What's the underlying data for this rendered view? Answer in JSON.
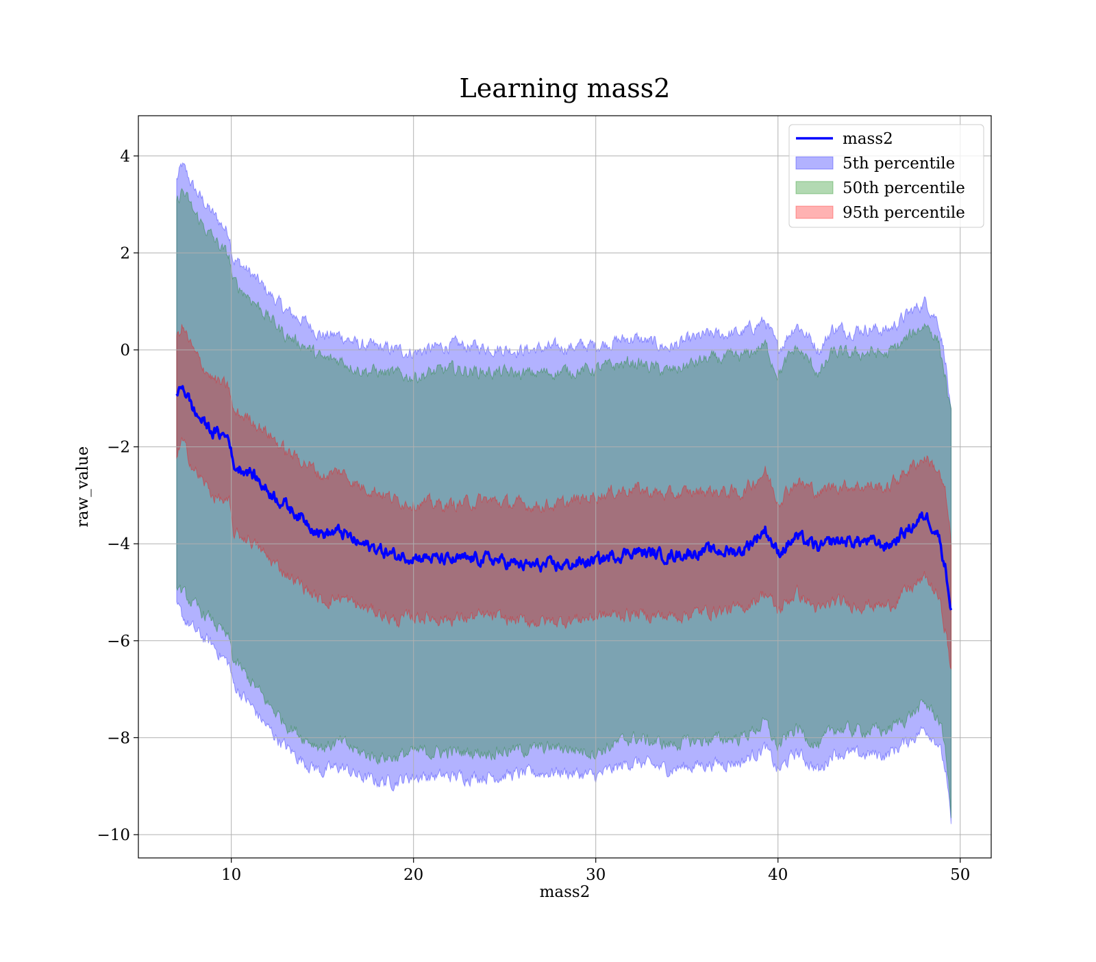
{
  "chart_data": {
    "type": "area",
    "title": "Learning mass2",
    "xlabel": "mass2",
    "ylabel": "raw_value",
    "xlim": [
      4.9,
      51.7
    ],
    "ylim": [
      -10.48,
      4.83
    ],
    "xticks": [
      10,
      20,
      30,
      40,
      50
    ],
    "yticks": [
      4,
      2,
      0,
      -2,
      -4,
      -6,
      -8,
      -10
    ],
    "xtick_labels": [
      "10",
      "20",
      "30",
      "40",
      "50"
    ],
    "ytick_labels": [
      "4",
      "2",
      "0",
      "−2",
      "−4",
      "−6",
      "−8",
      "−10"
    ],
    "grid": true,
    "legend_position": "top-right",
    "colors": {
      "line": "#0000ff",
      "band_5th": "#0000ff",
      "band_50th": "#008000",
      "band_95th": "#ff0000",
      "grid": "#b0b0b0"
    },
    "x": [
      7.0,
      7.3,
      8.0,
      9.0,
      9.9,
      10.1,
      11.0,
      12.0,
      13.0,
      14.0,
      15.0,
      16.0,
      17.0,
      18.0,
      19.0,
      20.0,
      22.0,
      24.0,
      26.0,
      28.0,
      30.0,
      32.0,
      34.0,
      36.0,
      38.0,
      39.3,
      40.0,
      41.0,
      42.3,
      43.0,
      44.0,
      45.0,
      46.0,
      47.0,
      48.1,
      48.8,
      49.2,
      49.5
    ],
    "series": [
      {
        "name": "mass2",
        "kind": "line",
        "values": [
          -1.0,
          -0.7,
          -1.3,
          -1.7,
          -1.8,
          -2.4,
          -2.5,
          -2.9,
          -3.2,
          -3.5,
          -3.8,
          -3.75,
          -4.0,
          -4.1,
          -4.25,
          -4.25,
          -4.35,
          -4.3,
          -4.45,
          -4.45,
          -4.35,
          -4.15,
          -4.25,
          -4.15,
          -4.15,
          -3.7,
          -4.2,
          -3.85,
          -4.1,
          -3.95,
          -3.95,
          -3.95,
          -4.05,
          -3.75,
          -3.4,
          -3.8,
          -4.5,
          -5.35
        ]
      },
      {
        "name": "5th percentile",
        "kind": "band",
        "upper": [
          3.5,
          3.8,
          3.3,
          2.8,
          2.4,
          1.9,
          1.6,
          1.2,
          0.8,
          0.6,
          0.3,
          0.3,
          0.1,
          0.05,
          0.0,
          -0.05,
          0.1,
          0.05,
          0.0,
          0.05,
          0.1,
          0.25,
          0.05,
          0.3,
          0.35,
          0.6,
          0.0,
          0.55,
          0.0,
          0.45,
          0.4,
          0.45,
          0.4,
          0.7,
          1.0,
          0.6,
          -0.2,
          -1.4
        ],
        "lower": [
          -5.3,
          -5.5,
          -5.8,
          -6.1,
          -6.5,
          -6.9,
          -7.3,
          -7.8,
          -8.2,
          -8.5,
          -8.7,
          -8.6,
          -8.8,
          -8.9,
          -8.9,
          -8.8,
          -8.8,
          -8.8,
          -8.75,
          -8.7,
          -8.8,
          -8.5,
          -8.65,
          -8.55,
          -8.5,
          -8.2,
          -8.7,
          -8.3,
          -8.7,
          -8.3,
          -8.35,
          -8.35,
          -8.35,
          -8.1,
          -7.8,
          -8.1,
          -8.7,
          -9.8
        ]
      },
      {
        "name": "50th percentile",
        "kind": "band",
        "upper": [
          3.0,
          3.3,
          2.8,
          2.3,
          1.9,
          1.4,
          1.1,
          0.7,
          0.3,
          0.1,
          -0.2,
          -0.2,
          -0.4,
          -0.45,
          -0.5,
          -0.55,
          -0.4,
          -0.45,
          -0.5,
          -0.45,
          -0.4,
          -0.25,
          -0.45,
          -0.2,
          -0.15,
          0.1,
          -0.5,
          0.05,
          -0.5,
          -0.05,
          -0.1,
          -0.05,
          -0.1,
          0.2,
          0.55,
          0.2,
          -0.6,
          -1.4
        ],
        "lower": [
          -4.8,
          -5.0,
          -5.3,
          -5.6,
          -6.0,
          -6.4,
          -6.8,
          -7.3,
          -7.7,
          -8.0,
          -8.2,
          -8.1,
          -8.3,
          -8.4,
          -8.4,
          -8.3,
          -8.3,
          -8.3,
          -8.25,
          -8.2,
          -8.3,
          -8.0,
          -8.15,
          -8.05,
          -8.0,
          -7.7,
          -8.2,
          -7.8,
          -8.2,
          -7.8,
          -7.85,
          -7.85,
          -7.85,
          -7.6,
          -7.3,
          -7.6,
          -8.2,
          -9.6
        ]
      },
      {
        "name": "95th percentile",
        "kind": "band",
        "upper": [
          0.2,
          0.5,
          -0.1,
          -0.6,
          -0.8,
          -1.3,
          -1.4,
          -1.7,
          -2.1,
          -2.3,
          -2.6,
          -2.5,
          -2.8,
          -2.9,
          -3.1,
          -3.15,
          -3.2,
          -3.1,
          -3.2,
          -3.2,
          -3.0,
          -2.85,
          -3.0,
          -2.9,
          -2.95,
          -2.5,
          -3.1,
          -2.7,
          -2.95,
          -2.8,
          -2.8,
          -2.8,
          -2.85,
          -2.5,
          -2.2,
          -2.5,
          -3.0,
          -4.0
        ],
        "lower": [
          -2.2,
          -1.9,
          -2.5,
          -3.0,
          -3.2,
          -3.8,
          -3.9,
          -4.3,
          -4.6,
          -4.9,
          -5.2,
          -5.1,
          -5.3,
          -5.4,
          -5.6,
          -5.5,
          -5.55,
          -5.5,
          -5.6,
          -5.6,
          -5.5,
          -5.45,
          -5.5,
          -5.4,
          -5.35,
          -5.0,
          -5.4,
          -5.0,
          -5.4,
          -5.2,
          -5.25,
          -5.25,
          -5.3,
          -5.0,
          -4.7,
          -5.1,
          -5.8,
          -6.6
        ]
      }
    ]
  }
}
